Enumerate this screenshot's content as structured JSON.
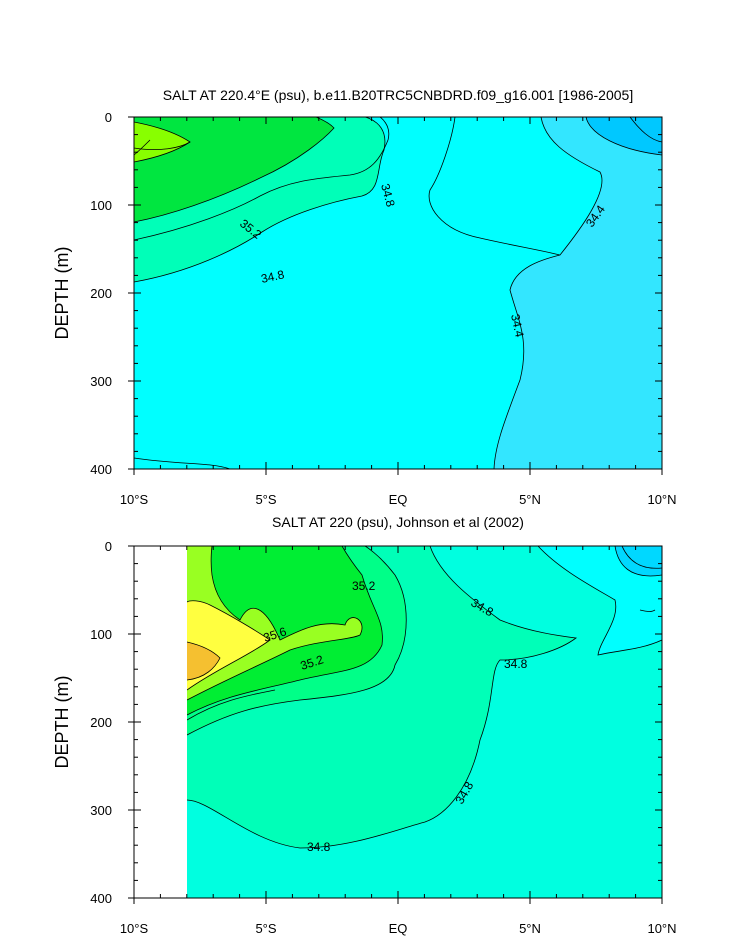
{
  "chart_data": [
    {
      "type": "contour",
      "title": "SALT AT 220.4°E (psu), b.e11.B20TRC5CNBDRD.f09_g16.001 [1986-2005]",
      "ylabel": "DEPTH (m)",
      "xlabel": "",
      "xlim": [
        -10,
        10
      ],
      "ylim": [
        0,
        400
      ],
      "y_inverted": true,
      "xticks": [
        -10,
        -5,
        0,
        5,
        10
      ],
      "xtick_labels": [
        "10°S",
        "5°S",
        "EQ",
        "5°N",
        "10°N"
      ],
      "yticks": [
        0,
        100,
        200,
        300,
        400
      ],
      "ytick_labels": [
        "0",
        "100",
        "200",
        "300",
        "400"
      ],
      "contour_interval": 0.2,
      "contour_labels": [
        {
          "text": "34.8",
          "x": -1.1,
          "y": 75
        },
        {
          "text": "35.2",
          "x": -5.8,
          "y": 130
        },
        {
          "text": "34.8",
          "x": -4.7,
          "y": 183
        },
        {
          "text": "34.4",
          "x": 7.4,
          "y": 112
        },
        {
          "text": "34.4",
          "x": 4.7,
          "y": 240
        }
      ],
      "regions": [
        {
          "salinity": 34.7,
          "color": "#00FFB8"
        },
        {
          "salinity": 34.5,
          "color": "#00FFFF"
        },
        {
          "salinity": 34.3,
          "color": "#33E6FF"
        },
        {
          "salinity": 34.1,
          "color": "#00C8FF"
        },
        {
          "salinity": 34.9,
          "color": "#00FF88"
        },
        {
          "salinity": 35.1,
          "color": "#00E640"
        },
        {
          "salinity": 35.3,
          "color": "#88FF00"
        }
      ]
    },
    {
      "type": "contour",
      "title": "SALT AT 220 (psu), Johnson et al (2002)",
      "ylabel": "DEPTH (m)",
      "xlabel": "",
      "xlim": [
        -10,
        10
      ],
      "ylim": [
        0,
        400
      ],
      "y_inverted": true,
      "data_xlim": [
        -8,
        10
      ],
      "xticks": [
        -10,
        -5,
        0,
        5,
        10
      ],
      "xtick_labels": [
        "10°S",
        "5°S",
        "EQ",
        "5°N",
        "10°N"
      ],
      "yticks": [
        0,
        100,
        200,
        300,
        400
      ],
      "ytick_labels": [
        "0",
        "100",
        "200",
        "300",
        "400"
      ],
      "contour_interval": 0.2,
      "contour_labels": [
        {
          "text": "35.2",
          "x": -1.2,
          "y": 45
        },
        {
          "text": "34.8",
          "x": 3.2,
          "y": 75
        },
        {
          "text": "35.6",
          "x": -4.8,
          "y": 108
        },
        {
          "text": "35.2",
          "x": -3.2,
          "y": 128
        },
        {
          "text": "34.8",
          "x": 4.4,
          "y": 135
        },
        {
          "text": "34.8",
          "x": 2.6,
          "y": 278
        },
        {
          "text": "34.8",
          "x": -3.0,
          "y": 343
        }
      ],
      "regions": [
        {
          "salinity": 34.9,
          "color": "#00FFB8"
        },
        {
          "salinity": 34.7,
          "color": "#00FFE0"
        },
        {
          "salinity": 34.5,
          "color": "#00FFFF"
        },
        {
          "salinity": 34.3,
          "color": "#00D8FF"
        },
        {
          "salinity": 35.1,
          "color": "#00FF88"
        },
        {
          "salinity": 35.3,
          "color": "#00EE33"
        },
        {
          "salinity": 35.5,
          "color": "#99FF22"
        },
        {
          "salinity": 35.7,
          "color": "#FFFF40"
        },
        {
          "salinity": 35.9,
          "color": "#F5C030"
        }
      ]
    }
  ]
}
